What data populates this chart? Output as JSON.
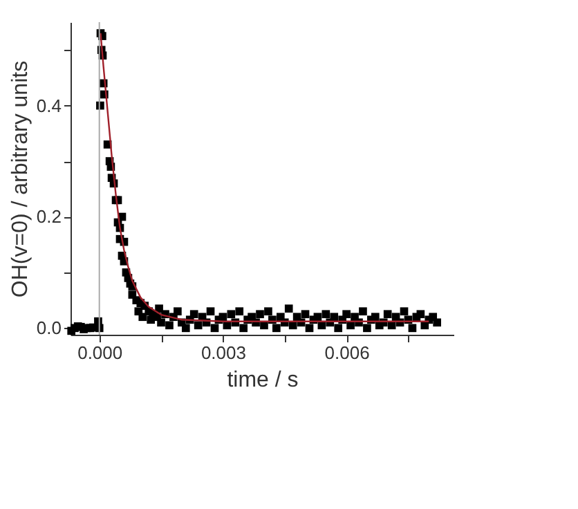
{
  "chart_data": {
    "type": "scatter",
    "xlabel": "time / s",
    "ylabel": "OH(v=0) / arbitrary units",
    "xlim": [
      -0.0007,
      0.0086
    ],
    "ylim": [
      -0.012,
      0.55
    ],
    "xticks": [
      {
        "value": 0,
        "label": "0.000"
      },
      {
        "value": 0.0015,
        "label": null
      },
      {
        "value": 0.003,
        "label": "0.003"
      },
      {
        "value": 0.0045,
        "label": null
      },
      {
        "value": 0.006,
        "label": "0.006"
      },
      {
        "value": 0.0075,
        "label": null
      }
    ],
    "yticks": [
      {
        "value": 0,
        "label": "0.0"
      },
      {
        "value": 0.1,
        "label": null
      },
      {
        "value": 0.2,
        "label": "0.2"
      },
      {
        "value": 0.3,
        "label": null
      },
      {
        "value": 0.4,
        "label": "0.4"
      },
      {
        "value": 0.5,
        "label": null
      }
    ],
    "grid": false,
    "marker": "square",
    "ref_lines": [
      {
        "axis": "x",
        "value": 0,
        "color": "#aaaaaa"
      }
    ],
    "series": [
      {
        "color": "#000000",
        "x": [
          -0.00068,
          -0.0006,
          -0.00052,
          -0.00045,
          -0.00038,
          -0.0003,
          -0.00022,
          -0.00015,
          -3e-05,
          0.0,
          2e-05,
          3e-05,
          7e-05,
          5e-05,
          8e-05,
          0.0001,
          0.00012,
          0.0002,
          0.00025,
          0.00028,
          0.0003,
          0.00035,
          0.0004,
          0.00045,
          0.00045,
          0.0005,
          0.00055,
          0.0005,
          0.0006,
          0.00055,
          0.0006,
          0.00065,
          0.0007,
          0.00075,
          0.0008,
          0.0008,
          0.0009,
          0.00095,
          0.001,
          0.00105,
          0.0011,
          0.0012,
          0.00125,
          0.0013,
          0.0014,
          0.00145,
          0.0015,
          0.0016,
          0.0017,
          0.0018,
          0.0019,
          0.002,
          0.0021,
          0.0022,
          0.0023,
          0.0024,
          0.0025,
          0.0026,
          0.0027,
          0.0028,
          0.0029,
          0.003,
          0.0031,
          0.0032,
          0.0033,
          0.0034,
          0.0035,
          0.0036,
          0.0037,
          0.0038,
          0.0039,
          0.004,
          0.0041,
          0.0042,
          0.0043,
          0.0044,
          0.0045,
          0.0046,
          0.0047,
          0.0048,
          0.0049,
          0.005,
          0.0051,
          0.0052,
          0.0053,
          0.0054,
          0.0055,
          0.0056,
          0.0057,
          0.0058,
          0.0059,
          0.006,
          0.0061,
          0.0062,
          0.0063,
          0.0064,
          0.0065,
          0.0066,
          0.0067,
          0.0068,
          0.0069,
          0.007,
          0.0071,
          0.0072,
          0.0073,
          0.0074,
          0.0075,
          0.0076,
          0.0077,
          0.0078,
          0.0079,
          0.008,
          0.0081,
          0.0082
        ],
        "values": [
          -0.005,
          0.0,
          0.003,
          0.002,
          -0.002,
          0.0,
          0.0,
          0.001,
          0.012,
          0.0,
          0.4,
          0.53,
          0.525,
          0.5,
          0.49,
          0.44,
          0.42,
          0.33,
          0.3,
          0.29,
          0.27,
          0.26,
          0.23,
          0.23,
          0.19,
          0.18,
          0.2,
          0.16,
          0.155,
          0.13,
          0.12,
          0.1,
          0.09,
          0.08,
          0.075,
          0.06,
          0.05,
          0.03,
          0.045,
          0.02,
          0.04,
          0.03,
          0.015,
          0.025,
          0.02,
          0.035,
          0.01,
          0.025,
          0.005,
          0.02,
          0.03,
          0.01,
          0.0,
          0.015,
          0.025,
          0.005,
          0.02,
          0.01,
          0.03,
          0.0,
          0.015,
          0.02,
          0.005,
          0.025,
          0.01,
          0.03,
          0.0,
          0.015,
          0.02,
          0.01,
          0.025,
          0.005,
          0.03,
          0.015,
          0.0,
          0.02,
          0.01,
          0.035,
          0.005,
          0.02,
          0.01,
          0.025,
          0.0,
          0.015,
          0.02,
          0.005,
          0.025,
          0.01,
          0.02,
          0.0,
          0.015,
          0.025,
          0.005,
          0.02,
          0.01,
          0.03,
          0.0,
          0.015,
          0.02,
          0.005,
          0.01,
          0.025,
          0.005,
          0.02,
          0.01,
          0.03,
          0.015,
          0.0,
          0.02,
          0.025,
          0.005,
          0.015,
          0.02,
          0.01
        ]
      },
      {
        "type": "line",
        "marker": "none",
        "color": "#a0202a",
        "x": [
          3e-05,
          0.0001,
          0.0002,
          0.0003,
          0.0004,
          0.0005,
          0.0006,
          0.0007,
          0.0008,
          0.001,
          0.0012,
          0.0015,
          0.002,
          0.003,
          0.005,
          0.008
        ],
        "values": [
          0.53,
          0.47,
          0.39,
          0.31,
          0.24,
          0.18,
          0.14,
          0.11,
          0.085,
          0.055,
          0.038,
          0.024,
          0.015,
          0.012,
          0.012,
          0.012
        ]
      }
    ]
  }
}
